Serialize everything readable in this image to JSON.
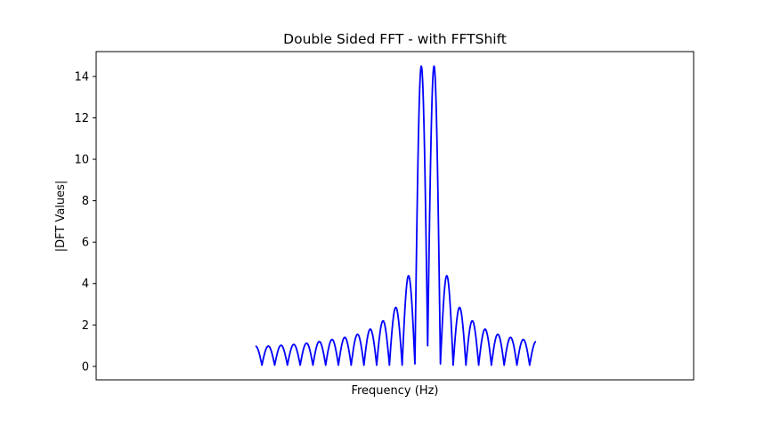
{
  "chart_data": {
    "type": "line",
    "title": "Double Sided FFT - with FFTShift",
    "xlabel": "Frequency (Hz)",
    "ylabel": "|DFT Values|",
    "ylim": [
      -0.65,
      15.2
    ],
    "yticks": [
      0,
      2,
      4,
      6,
      8,
      10,
      12,
      14
    ],
    "ytick_labels": [
      "0",
      "2",
      "4",
      "6",
      "8",
      "10",
      "12",
      "14"
    ],
    "xticks": [],
    "grid": false,
    "series": [
      {
        "color": "#0000ff",
        "x": [
          -22,
          -21,
          -20,
          -19,
          -18,
          -17,
          -16,
          -15,
          -14,
          -13,
          -12,
          -11,
          -10,
          -9,
          -8,
          -7,
          -6,
          -5,
          -4,
          -3,
          -2,
          -1,
          0,
          1,
          2,
          3,
          4,
          5,
          6,
          7,
          8,
          9,
          10,
          11,
          12,
          13,
          14,
          15,
          16,
          17,
          18,
          19,
          20,
          21,
          22
        ],
        "y": [
          0.98,
          0.06,
          0.98,
          0.06,
          1.02,
          0.06,
          1.06,
          0.06,
          1.12,
          0.06,
          1.2,
          0.06,
          1.3,
          0.06,
          1.4,
          0.06,
          1.55,
          0.06,
          1.8,
          0.06,
          2.2,
          0.06,
          2.85,
          0.06,
          4.38,
          0.12,
          14.5,
          1.0,
          14.5,
          0.12,
          4.38,
          0.06,
          2.85,
          0.06,
          2.2,
          0.06,
          1.8,
          0.06,
          1.55,
          0.06,
          1.4,
          0.06,
          1.3,
          0.06,
          1.2
        ]
      }
    ]
  }
}
